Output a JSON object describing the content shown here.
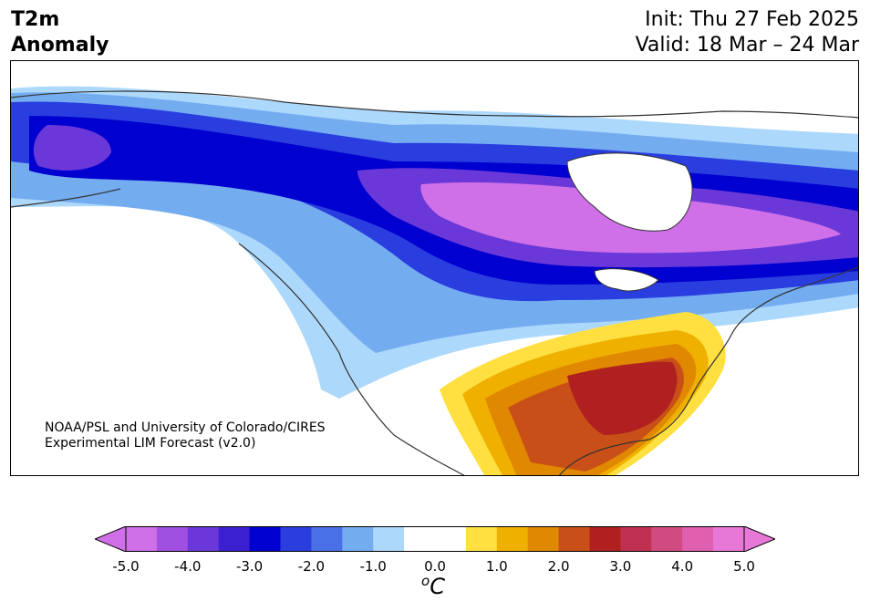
{
  "title": {
    "line1": "T2m",
    "line2": "Anomaly"
  },
  "init_text": "Init: Thu 27 Feb 2025",
  "valid_text": "Valid: 18 Mar – 24 Mar",
  "credit": {
    "line1": "NOAA/PSL and University of Colorado/CIRES",
    "line2": "Experimental LIM Forecast (v2.0)"
  },
  "colorbar": {
    "unit_sup": "o",
    "unit_main": "C",
    "ticks": [
      "-5.0",
      "-4.0",
      "-3.0",
      "-2.0",
      "-1.0",
      "0.0",
      "1.0",
      "2.0",
      "3.0",
      "4.0",
      "5.0"
    ],
    "colors": [
      "#d070e8",
      "#a050e0",
      "#6a38d8",
      "#3a20d0",
      "#0000d0",
      "#2a3ee0",
      "#4a70e8",
      "#74acf0",
      "#acd8fc",
      "#ffffff",
      "#ffffff",
      "#ffe040",
      "#f0b000",
      "#e08800",
      "#c85018",
      "#b02020",
      "#c03050",
      "#d04c80",
      "#e060b0",
      "#e878d8"
    ],
    "under_color": "#d070e8",
    "over_color": "#e878d8"
  }
}
